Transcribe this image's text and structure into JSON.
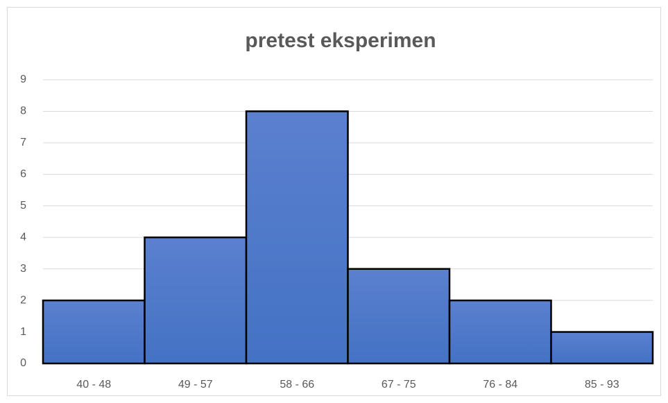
{
  "chart_data": {
    "type": "bar",
    "title": "pretest eksperimen",
    "categories": [
      "40 - 48",
      "49 - 57",
      "58 - 66",
      "67 - 75",
      "76 - 84",
      "85 - 93"
    ],
    "values": [
      2,
      4,
      8,
      3,
      2,
      1
    ],
    "color": "#4472c4",
    "ylim": [
      0,
      9
    ],
    "yticks": [
      0,
      1,
      2,
      3,
      4,
      5,
      6,
      7,
      8,
      9
    ],
    "grid": true
  }
}
